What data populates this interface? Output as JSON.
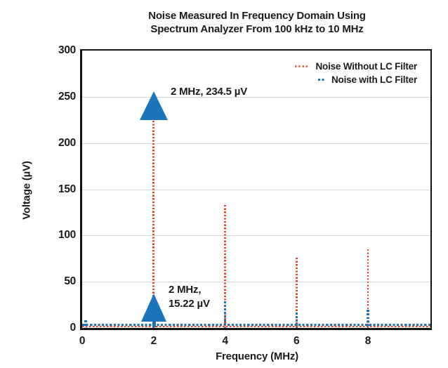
{
  "chart_data": {
    "type": "line",
    "title_lines": [
      "Noise Measured In Frequency Domain Using",
      "Spectrum Analyzer From 100 kHz to 10 MHz"
    ],
    "xlabel": "Frequency (MHz)",
    "ylabel": "Voltage (µV)",
    "xlim": [
      0,
      9.75
    ],
    "ylim": [
      0,
      300
    ],
    "x_ticks": [
      0,
      2,
      4,
      6,
      8
    ],
    "y_ticks": [
      0,
      50,
      100,
      150,
      200,
      250,
      300
    ],
    "grid": "horizontal",
    "legend_position": "top-right",
    "line_style": "dotted",
    "series": [
      {
        "name": "Noise Without LC Filter",
        "color": "#e8432c",
        "baseline_uV": 2,
        "peaks": [
          {
            "x": 2,
            "y": 234.5
          },
          {
            "x": 4,
            "y": 133
          },
          {
            "x": 6,
            "y": 76
          },
          {
            "x": 8,
            "y": 85
          }
        ]
      },
      {
        "name": "Noise with LC Filter",
        "color": "#1f74b8",
        "baseline_uV": 3,
        "peaks": [
          {
            "x": 0.1,
            "y": 8
          },
          {
            "x": 2,
            "y": 15.22
          },
          {
            "x": 4,
            "y": 29
          },
          {
            "x": 6,
            "y": 17
          },
          {
            "x": 8,
            "y": 20
          }
        ]
      }
    ],
    "annotations": [
      {
        "text": "2 MHz, 234.5 µV",
        "x": 2,
        "y": 234.5,
        "marker": "triangle-up"
      },
      {
        "text_line1": "2 MHz,",
        "text_line2": "15.22 µV",
        "x": 2,
        "y": 15.22,
        "marker": "triangle-up"
      }
    ]
  },
  "colors": {
    "no_filter_series": "#e8432c",
    "lc_filter_series": "#1f74b8",
    "annotation_arrow": "#1b74bc",
    "gridline": "#d8d8d8",
    "axis": "#121212"
  }
}
